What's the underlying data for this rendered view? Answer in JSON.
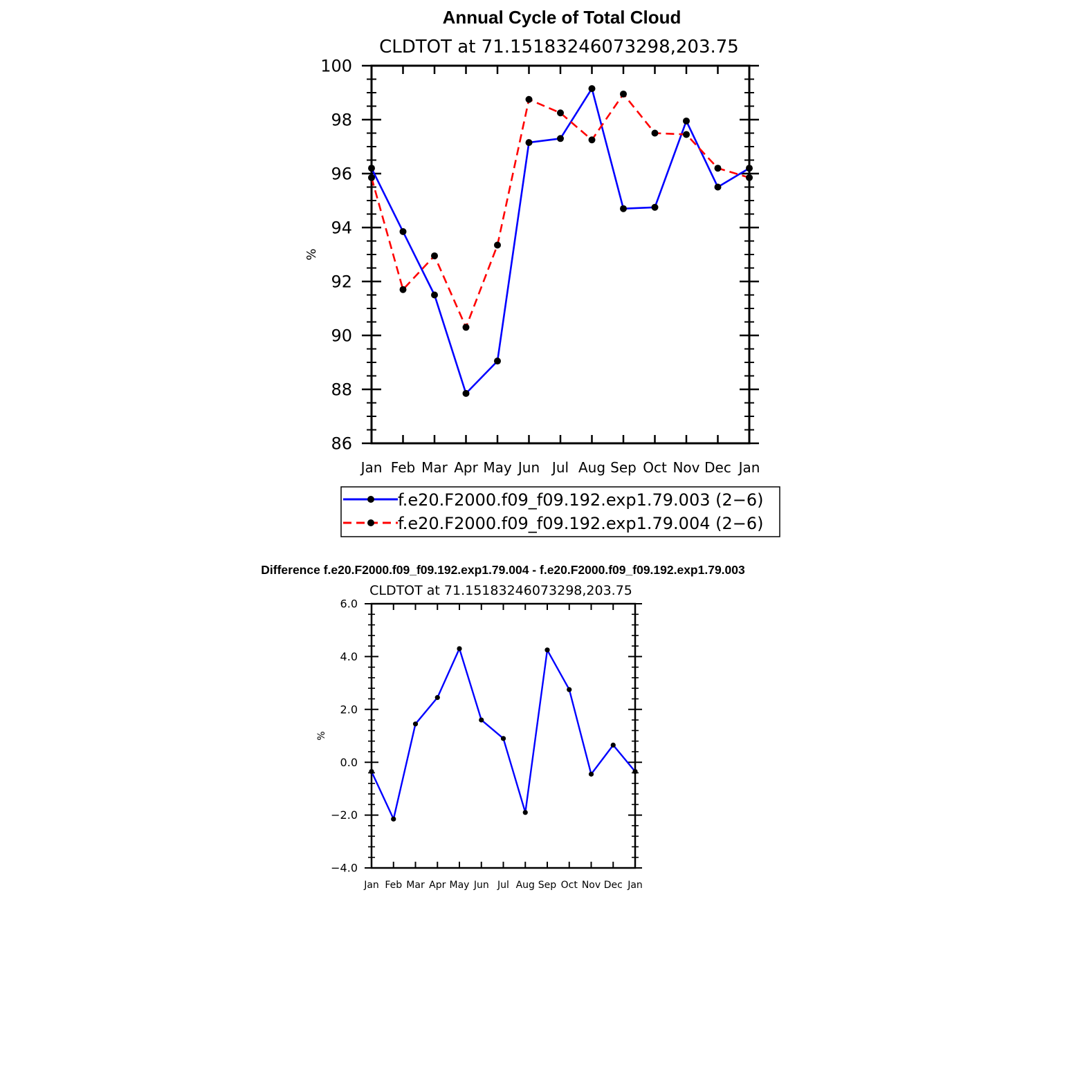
{
  "chart_data": [
    {
      "type": "line",
      "title": "Annual Cycle of Total Cloud",
      "subtitle": "CLDTOT at 71.15183246073298,203.75",
      "ylabel": "%",
      "categories": [
        "Jan",
        "Feb",
        "Mar",
        "Apr",
        "May",
        "Jun",
        "Jul",
        "Aug",
        "Sep",
        "Oct",
        "Nov",
        "Dec",
        "Jan"
      ],
      "ylim": [
        86,
        100
      ],
      "yticks": [
        "86",
        "88",
        "90",
        "92",
        "94",
        "96",
        "98",
        "100"
      ],
      "grid": false,
      "legend_position": "below",
      "series": [
        {
          "name": "f.e20.F2000.f09_f09.192.exp1.79.003 (2−6)",
          "color": "#0000ff",
          "dash": "solid",
          "values": [
            96.2,
            93.85,
            91.5,
            87.85,
            89.05,
            97.15,
            97.3,
            99.15,
            94.7,
            94.75,
            97.95,
            95.5,
            96.2
          ]
        },
        {
          "name": "f.e20.F2000.f09_f09.192.exp1.79.004 (2−6)",
          "color": "#ff0000",
          "dash": "dashed",
          "values": [
            95.85,
            91.7,
            92.95,
            90.3,
            93.35,
            98.75,
            98.25,
            97.25,
            98.95,
            97.5,
            97.45,
            96.2,
            95.85
          ]
        }
      ]
    },
    {
      "type": "line",
      "title": "Difference f.e20.F2000.f09_f09.192.exp1.79.004 - f.e20.F2000.f09_f09.192.exp1.79.003",
      "subtitle": "CLDTOT at 71.15183246073298,203.75",
      "ylabel": "%",
      "categories": [
        "Jan",
        "Feb",
        "Mar",
        "Apr",
        "May",
        "Jun",
        "Jul",
        "Aug",
        "Sep",
        "Oct",
        "Nov",
        "Dec",
        "Jan"
      ],
      "ylim": [
        -4.0,
        6.0
      ],
      "yticks": [
        "−4.0",
        "−2.0",
        "0.0",
        "2.0",
        "4.0",
        "6.0"
      ],
      "grid": false,
      "series": [
        {
          "color": "#0000ff",
          "dash": "solid",
          "values": [
            -0.35,
            -2.15,
            1.45,
            2.45,
            4.3,
            1.6,
            0.9,
            -1.9,
            4.25,
            2.75,
            -0.45,
            0.65,
            -0.35
          ]
        }
      ]
    }
  ]
}
